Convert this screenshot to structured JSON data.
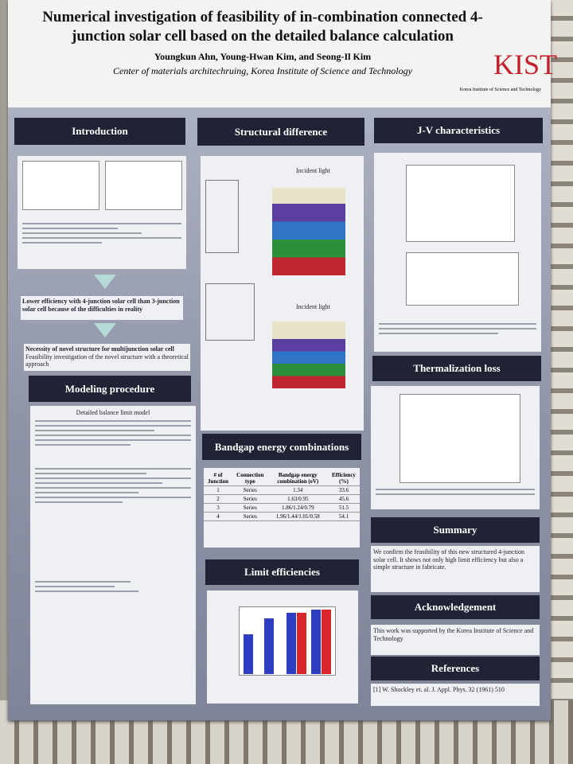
{
  "header": {
    "title": "Numerical investigation of feasibility of in-combination connected 4-junction solar cell based on the detailed balance calculation",
    "authors": "Youngkun Ahn, Young-Hwan Kim, and Seong-Il Kim",
    "affiliation": "Center of materials architechruing, Korea Institute of Science and Technology",
    "logo": "KIST",
    "logo_caption": "Korea Institute of Science and Technology"
  },
  "sections": [
    {
      "heading": "Introduction",
      "texts": [
        "Lower efficiency with 4-junction solar cell than 3-junction solar cell because of the difficulties in reality",
        "Necessity of novel structure for multijunction solar cell",
        "Feasibility investigation of the novel structure with a theoretical approach"
      ]
    },
    {
      "heading": "Modeling procedure",
      "texts": [
        "Detailed balance limit model"
      ]
    },
    {
      "heading": "Structural difference",
      "texts": [
        "Incident light",
        "Incident light"
      ]
    },
    {
      "heading": "Bandgap energy combinations",
      "table": {
        "columns": [
          "# of Junction",
          "Connection type",
          "Bandgap energy combination (eV)",
          "Efficiency (%)"
        ],
        "rows": [
          [
            "1",
            "Series",
            "1.34",
            "33.6"
          ],
          [
            "2",
            "Series",
            "1.63/0.95",
            "45.6"
          ],
          [
            "3",
            "Series",
            "1.86/1.24/0.79",
            "51.5"
          ],
          [
            "4",
            "Series",
            "1.96/1.44/1.01/0.58",
            "54.1"
          ]
        ]
      }
    },
    {
      "heading": "Limit efficiencies",
      "texts": []
    },
    {
      "heading": "J-V characteristics",
      "texts": []
    },
    {
      "heading": "Thermalization loss",
      "texts": []
    },
    {
      "heading": "Summary",
      "texts": [
        "We confirm the feasibility of this new structured 4-junction solar cell. It shows not only high limit efficiency but also a simple structure in fabricate."
      ]
    },
    {
      "heading": "Acknowledgement",
      "texts": [
        "This work was supported by the Korea Institute of Science and Technology"
      ]
    },
    {
      "heading": "References",
      "texts": [
        "[1] W. Shockley et. al. J. Appl. Phys. 32 (1961) 510"
      ]
    }
  ]
}
